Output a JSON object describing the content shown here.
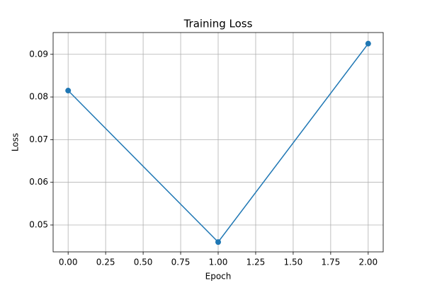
{
  "chart_data": {
    "type": "line",
    "title": "Training Loss",
    "x_label": "Epoch",
    "y_label": "Loss",
    "x": [
      0,
      1,
      2
    ],
    "series": [
      {
        "name": "Loss",
        "color": "#1f77b4",
        "values": [
          0.0815,
          0.046,
          0.0925
        ]
      }
    ],
    "xlim": [
      -0.1,
      2.1
    ],
    "xticks": [
      {
        "value": 0,
        "label": "0.00"
      },
      {
        "value": 0.25,
        "label": "0.25"
      },
      {
        "value": 0.5,
        "label": "0.50"
      },
      {
        "value": 0.75,
        "label": "0.75"
      },
      {
        "value": 1,
        "label": "1.00"
      },
      {
        "value": 1.25,
        "label": "1.25"
      },
      {
        "value": 1.5,
        "label": "1.50"
      },
      {
        "value": 1.75,
        "label": "1.75"
      },
      {
        "value": 2,
        "label": "2.00"
      }
    ],
    "ylim": [
      0.0437,
      0.0951
    ],
    "yticks": [
      0.05,
      0.06,
      0.07,
      0.08,
      0.09
    ],
    "grid": true,
    "markers": true
  }
}
